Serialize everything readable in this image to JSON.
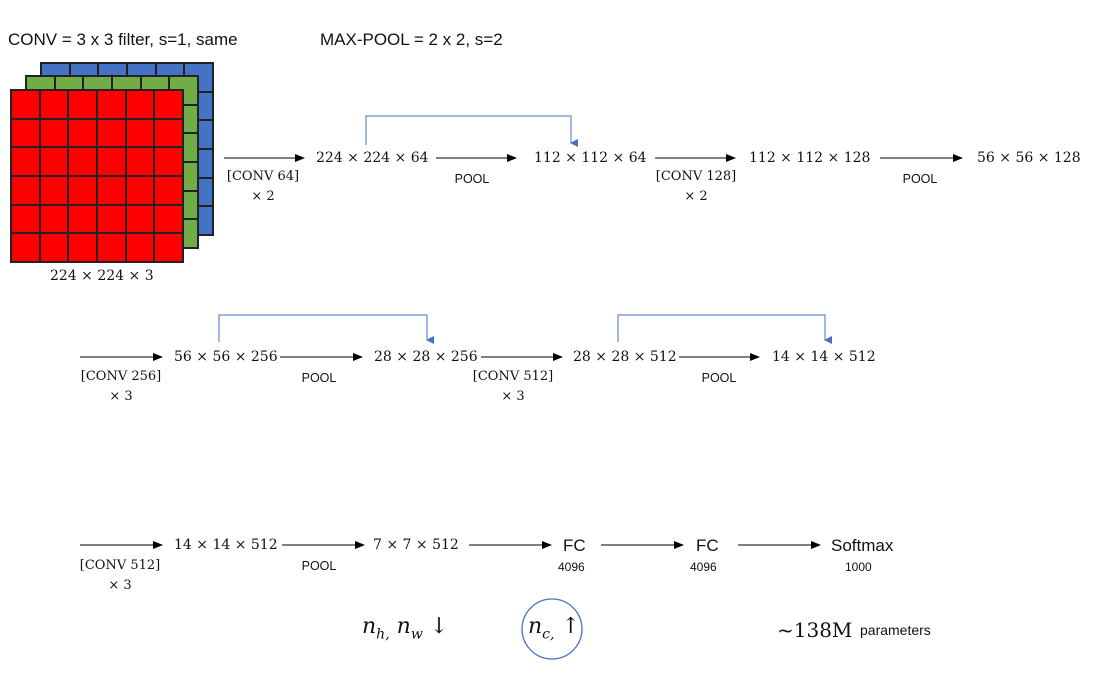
{
  "header": {
    "conv_def": "CONV = 3 x 3 filter, s=1, same",
    "pool_def": "MAX-POOL = 2 x 2, s=2"
  },
  "input": {
    "label": "224 × 224 × 3"
  },
  "row1": {
    "conv1": {
      "line1": "[CONV 64]",
      "line2": "× 2"
    },
    "dim1": "224 × 224 × 64",
    "pool1": "POOL",
    "dim2": "112 × 112 × 64",
    "conv2": {
      "line1": "[CONV 128]",
      "line2": "× 2"
    },
    "dim3": "112 × 112 × 128",
    "pool2": "POOL",
    "dim4": "56 × 56 × 128"
  },
  "row2": {
    "conv3": {
      "line1": "[CONV 256]",
      "line2": "× 3"
    },
    "dim1": "56 × 56 × 256",
    "pool1": "POOL",
    "dim2": "28 × 28 × 256",
    "conv4": {
      "line1": "[CONV 512]",
      "line2": "× 3"
    },
    "dim3": "28 × 28 × 512",
    "pool2": "POOL",
    "dim4": "14 × 14 × 512"
  },
  "row3": {
    "conv5": {
      "line1": "[CONV 512]",
      "line2": "× 3"
    },
    "dim1": "14 × 14 × 512",
    "pool1": "POOL",
    "dim2": "7 × 7 × 512",
    "fc1": {
      "label": "FC",
      "size": "4096"
    },
    "fc2": {
      "label": "FC",
      "size": "4096"
    },
    "softmax": {
      "label": "Softmax",
      "size": "1000"
    }
  },
  "notes": {
    "spatial_symbol": "n",
    "spatial_sub_h": "h,",
    "spatial_sub_w": "w",
    "spatial_arrow": "↓",
    "channel_symbol": "n",
    "channel_sub": "c,",
    "channel_arrow": "↑",
    "param_count": "~138M",
    "param_word": "parameters"
  },
  "colors": {
    "skip_line": "#4472c4",
    "circle": "#4472c4",
    "red": "#ff0000",
    "green": "#70ad47",
    "blue": "#4472c4"
  }
}
